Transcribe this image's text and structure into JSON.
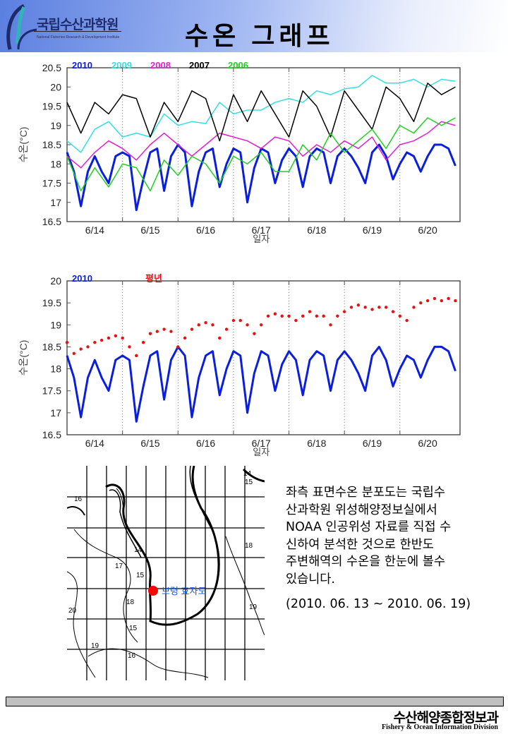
{
  "header": {
    "logo_kr": "국립수산과학원",
    "logo_en": "National Fisheries Research & Development Institute",
    "title": "수온 그래프"
  },
  "chart_data": [
    {
      "type": "line",
      "title": "",
      "xlabel": "일자",
      "ylabel": "수온(°C)",
      "ylim": [
        16.5,
        20.5
      ],
      "yticks": [
        "16.5",
        "17",
        "17.5",
        "18",
        "18.5",
        "19",
        "19.5",
        "20",
        "20.5"
      ],
      "xtick_labels": [
        "6/14",
        "6/15",
        "6/16",
        "6/17",
        "6/18",
        "6/19",
        "6/20"
      ],
      "x_unit": "hours since 6/14 00:00",
      "legend": "top-left",
      "series": [
        {
          "name": "2010",
          "color": "#0a1ee0",
          "width": 3,
          "t_step": 3,
          "values": [
            18.3,
            17.8,
            16.9,
            17.8,
            18.2,
            17.8,
            17.5,
            18.2,
            18.3,
            18.2,
            16.8,
            17.6,
            18.3,
            18.4,
            17.3,
            18.2,
            18.5,
            18.3,
            16.9,
            17.8,
            18.3,
            18.4,
            17.4,
            18.0,
            18.4,
            18.3,
            17.0,
            17.9,
            18.4,
            18.3,
            17.5,
            18.1,
            18.4,
            18.2,
            17.4,
            18.2,
            18.4,
            18.3,
            17.5,
            18.2,
            18.4,
            18.2,
            17.9,
            17.5,
            18.3,
            18.5,
            18.2,
            17.6,
            18.0,
            18.3,
            18.2,
            17.8,
            18.2,
            18.5,
            18.5,
            18.4,
            17.95
          ]
        },
        {
          "name": "2009",
          "color": "#33e0e0",
          "width": 1.5,
          "t_step": 6,
          "values": [
            18.6,
            18.3,
            18.9,
            19.1,
            18.7,
            18.8,
            18.7,
            19.3,
            19.0,
            19.1,
            19.05,
            19.6,
            19.3,
            19.4,
            19.4,
            19.6,
            19.7,
            19.6,
            19.9,
            19.8,
            19.95,
            20.0,
            20.3,
            20.1,
            20.1,
            20.2,
            20.0,
            20.2,
            20.15
          ]
        },
        {
          "name": "2008",
          "color": "#e020d0",
          "width": 1.5,
          "t_step": 6,
          "values": [
            18.2,
            17.9,
            18.3,
            18.6,
            18.4,
            18.1,
            18.5,
            18.8,
            18.5,
            18.2,
            18.5,
            18.8,
            18.7,
            18.6,
            18.4,
            18.7,
            18.6,
            18.2,
            18.5,
            18.3,
            18.6,
            18.4,
            18.7,
            18.1,
            18.5,
            18.6,
            18.8,
            19.1,
            19.0
          ]
        },
        {
          "name": "2007",
          "color": "#000000",
          "width": 1.5,
          "t_step": 6,
          "values": [
            19.6,
            18.8,
            19.6,
            19.3,
            19.8,
            19.7,
            18.7,
            19.6,
            19.1,
            19.9,
            19.7,
            18.6,
            19.8,
            19.1,
            19.9,
            19.3,
            18.7,
            19.9,
            19.5,
            18.7,
            19.9,
            19.4,
            18.9,
            20.0,
            19.7,
            19.1,
            20.1,
            19.8,
            20.0
          ]
        },
        {
          "name": "2006",
          "color": "#20d020",
          "width": 1.5,
          "t_step": 6,
          "values": [
            18.2,
            17.3,
            17.9,
            17.4,
            18.0,
            17.9,
            17.3,
            18.1,
            17.7,
            18.2,
            18.0,
            17.5,
            18.2,
            18.0,
            18.3,
            17.8,
            17.8,
            18.5,
            18.1,
            18.8,
            18.3,
            18.6,
            18.9,
            18.4,
            19.0,
            18.8,
            19.2,
            19.0,
            19.2
          ]
        }
      ]
    },
    {
      "type": "line",
      "title": "",
      "xlabel": "일자",
      "ylabel": "수온(°C)",
      "ylim": [
        16.5,
        20.0
      ],
      "yticks": [
        "16.5",
        "17",
        "17.5",
        "18",
        "18.5",
        "19",
        "19.5",
        "20"
      ],
      "xtick_labels": [
        "6/14",
        "6/15",
        "6/16",
        "6/17",
        "6/18",
        "6/19",
        "6/20"
      ],
      "x_unit": "hours since 6/14 00:00",
      "legend": "top-left",
      "series": [
        {
          "name": "2010",
          "color": "#0a1ee0",
          "width": 3,
          "style": "line",
          "t_step": 3,
          "values": [
            18.3,
            17.8,
            16.9,
            17.8,
            18.2,
            17.8,
            17.5,
            18.2,
            18.3,
            18.2,
            16.8,
            17.6,
            18.3,
            18.4,
            17.3,
            18.2,
            18.5,
            18.3,
            16.9,
            17.8,
            18.3,
            18.4,
            17.4,
            18.0,
            18.4,
            18.3,
            17.0,
            17.9,
            18.4,
            18.3,
            17.5,
            18.1,
            18.4,
            18.2,
            17.4,
            18.2,
            18.4,
            18.3,
            17.5,
            18.2,
            18.4,
            18.2,
            17.9,
            17.5,
            18.3,
            18.5,
            18.2,
            17.6,
            18.0,
            18.3,
            18.2,
            17.8,
            18.2,
            18.5,
            18.5,
            18.4,
            17.95
          ]
        },
        {
          "name": "평년",
          "color": "#e81010",
          "width": 2,
          "style": "dots",
          "t_step": 3,
          "values": [
            18.6,
            18.35,
            18.45,
            18.5,
            18.6,
            18.65,
            18.7,
            18.75,
            18.7,
            18.5,
            18.3,
            18.6,
            18.8,
            18.85,
            18.9,
            18.85,
            18.5,
            18.7,
            18.9,
            19.0,
            19.05,
            19.0,
            18.7,
            18.9,
            19.1,
            19.1,
            19.0,
            18.8,
            19.0,
            19.2,
            19.25,
            19.2,
            19.2,
            19.1,
            19.2,
            19.3,
            19.2,
            19.2,
            19.0,
            19.2,
            19.3,
            19.4,
            19.45,
            19.4,
            19.35,
            19.4,
            19.4,
            19.3,
            19.2,
            19.1,
            19.4,
            19.5,
            19.55,
            19.6,
            19.55,
            19.6,
            19.55
          ]
        }
      ]
    }
  ],
  "map": {
    "station_label": "보령 효자도",
    "station_color": "#ff0000",
    "contour_labels": [
      "14",
      "15",
      "16",
      "17",
      "18",
      "19",
      "20",
      "14",
      "15",
      "16",
      "18",
      "19",
      "15"
    ]
  },
  "description": {
    "lines": [
      "좌측 표면수온 분포도는 국립수",
      "산과학원 위성해양정보실에서",
      "NOAA 인공위성 자료를 직접 수",
      "신하여 분석한 것으로  한반도",
      "주변해역의 수온을 한눈에 볼수",
      "있습니다."
    ],
    "period": "(2010. 06. 13 ~ 2010. 06. 19)"
  },
  "footer": {
    "kr": "수산해양종합정보과",
    "en": "Fishery & Ocean Information Division"
  }
}
